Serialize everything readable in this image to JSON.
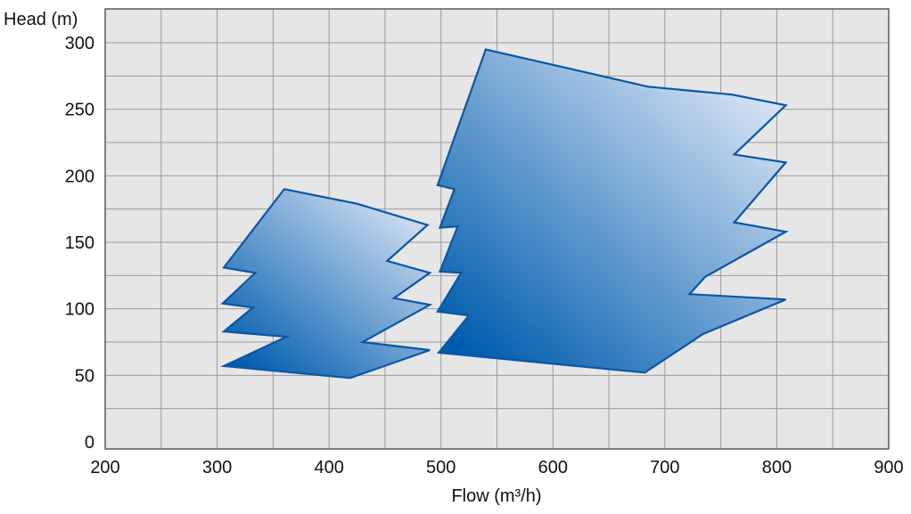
{
  "chart_data": {
    "type": "area",
    "title": "",
    "xlabel": "Flow (m³/h)",
    "ylabel": "Head (m)",
    "xlim": [
      200,
      900
    ],
    "ylim": [
      0,
      325
    ],
    "x_ticks": [
      200,
      300,
      400,
      500,
      600,
      700,
      800,
      900
    ],
    "y_ticks": [
      0,
      50,
      100,
      150,
      200,
      250,
      300
    ],
    "x_grid_step": 50,
    "y_grid_step": 25,
    "grid": true,
    "series": [
      {
        "points": [
          [
            306,
            57
          ],
          [
            419,
            48
          ],
          [
            490,
            69
          ],
          [
            430,
            75
          ],
          [
            490,
            103
          ],
          [
            458,
            108
          ],
          [
            490,
            127
          ],
          [
            452,
            136
          ],
          [
            488,
            163
          ],
          [
            425,
            179
          ],
          [
            360,
            190
          ],
          [
            306,
            131
          ],
          [
            334,
            127
          ],
          [
            305,
            104
          ],
          [
            332,
            101
          ],
          [
            306,
            83
          ],
          [
            362,
            79
          ]
        ]
      },
      {
        "points": [
          [
            498,
            67
          ],
          [
            682,
            52
          ],
          [
            734,
            81
          ],
          [
            808,
            107
          ],
          [
            722,
            111
          ],
          [
            736,
            124
          ],
          [
            808,
            158
          ],
          [
            762,
            165
          ],
          [
            808,
            210
          ],
          [
            762,
            216
          ],
          [
            808,
            253
          ],
          [
            760,
            261
          ],
          [
            685,
            267
          ],
          [
            540,
            295
          ],
          [
            497,
            193
          ],
          [
            512,
            190
          ],
          [
            499,
            161
          ],
          [
            515,
            162
          ],
          [
            499,
            128
          ],
          [
            518,
            127
          ],
          [
            497,
            98
          ],
          [
            525,
            95
          ]
        ]
      }
    ],
    "colors": {
      "fill_dark": "#005cad",
      "fill_light": "#e4ebf8",
      "outline": "#0a56a4",
      "plot_background": "#e6e6e6",
      "grid": "#9a9a9a"
    }
  }
}
